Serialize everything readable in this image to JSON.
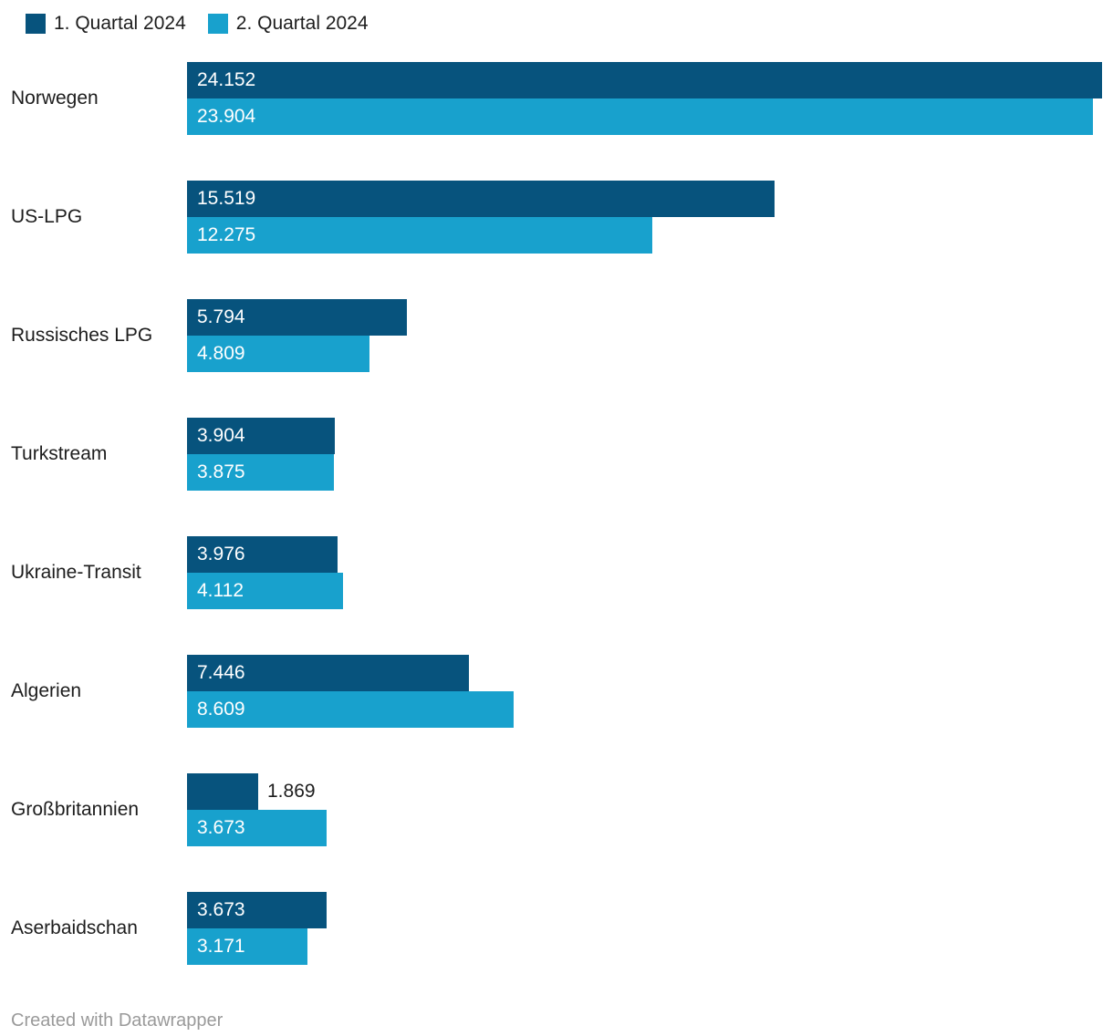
{
  "legend": {
    "items": [
      {
        "label": "1. Quartal 2024",
        "color": "#07537d"
      },
      {
        "label": "2. Quartal 2024",
        "color": "#18a1cd"
      }
    ]
  },
  "footer": {
    "attribution": "Created with Datawrapper"
  },
  "chart_data": {
    "type": "bar",
    "orientation": "horizontal",
    "title": "",
    "xlabel": "",
    "ylabel": "",
    "grid": false,
    "legend_position": "top",
    "value_label_position": "inside-left",
    "number_format": "german-thousands-dot",
    "categories": [
      "Norwegen",
      "US-LPG",
      "Russisches LPG",
      "Turkstream",
      "Ukraine-Transit",
      "Algerien",
      "Großbritannien",
      "Aserbaidschan"
    ],
    "series": [
      {
        "name": "1. Quartal 2024",
        "color": "#07537d",
        "values": [
          24152,
          15519,
          5794,
          3904,
          3976,
          7446,
          1869,
          3673
        ],
        "value_labels": [
          "24.152",
          "15.519",
          "5.794",
          "3.904",
          "3.976",
          "7.446",
          "1.869",
          "3.673"
        ]
      },
      {
        "name": "2. Quartal 2024",
        "color": "#18a1cd",
        "values": [
          23904,
          12275,
          4809,
          3875,
          4112,
          8609,
          3673,
          3171
        ],
        "value_labels": [
          "23.904",
          "12.275",
          "4.809",
          "3.875",
          "4.112",
          "8.609",
          "3.673",
          "3.171"
        ]
      }
    ],
    "xlim": [
      0,
      24152
    ]
  }
}
